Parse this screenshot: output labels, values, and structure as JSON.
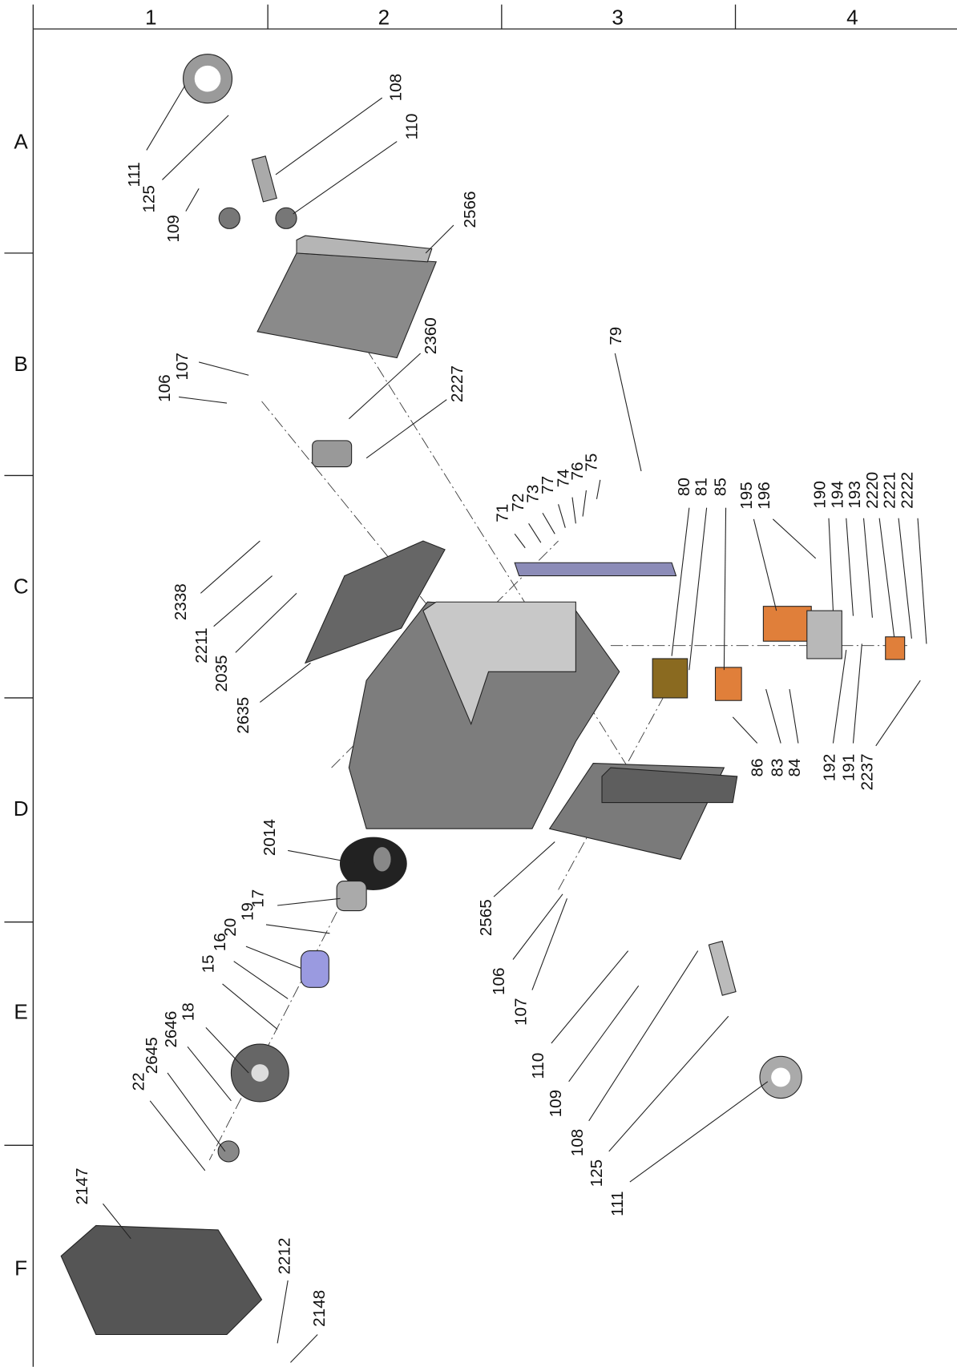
{
  "grid": {
    "columns": [
      "1",
      "2",
      "3",
      "4"
    ],
    "rows": [
      "A",
      "B",
      "C",
      "D",
      "E",
      "F"
    ]
  },
  "callouts": [
    "111",
    "125",
    "109",
    "108",
    "110",
    "2566",
    "107",
    "106",
    "2360",
    "2227",
    "71",
    "72",
    "73",
    "77",
    "74",
    "76",
    "75",
    "79",
    "80",
    "81",
    "85",
    "195",
    "196",
    "190",
    "194",
    "193",
    "2220",
    "2221",
    "2222",
    "2338",
    "2211",
    "2035",
    "2635",
    "86",
    "83",
    "84",
    "192",
    "191",
    "2237",
    "2014",
    "17",
    "19",
    "20",
    "16",
    "15",
    "18",
    "2646",
    "2645",
    "22",
    "2147",
    "2565",
    "106",
    "107",
    "110",
    "109",
    "108",
    "125",
    "111",
    "2212",
    "2148"
  ]
}
